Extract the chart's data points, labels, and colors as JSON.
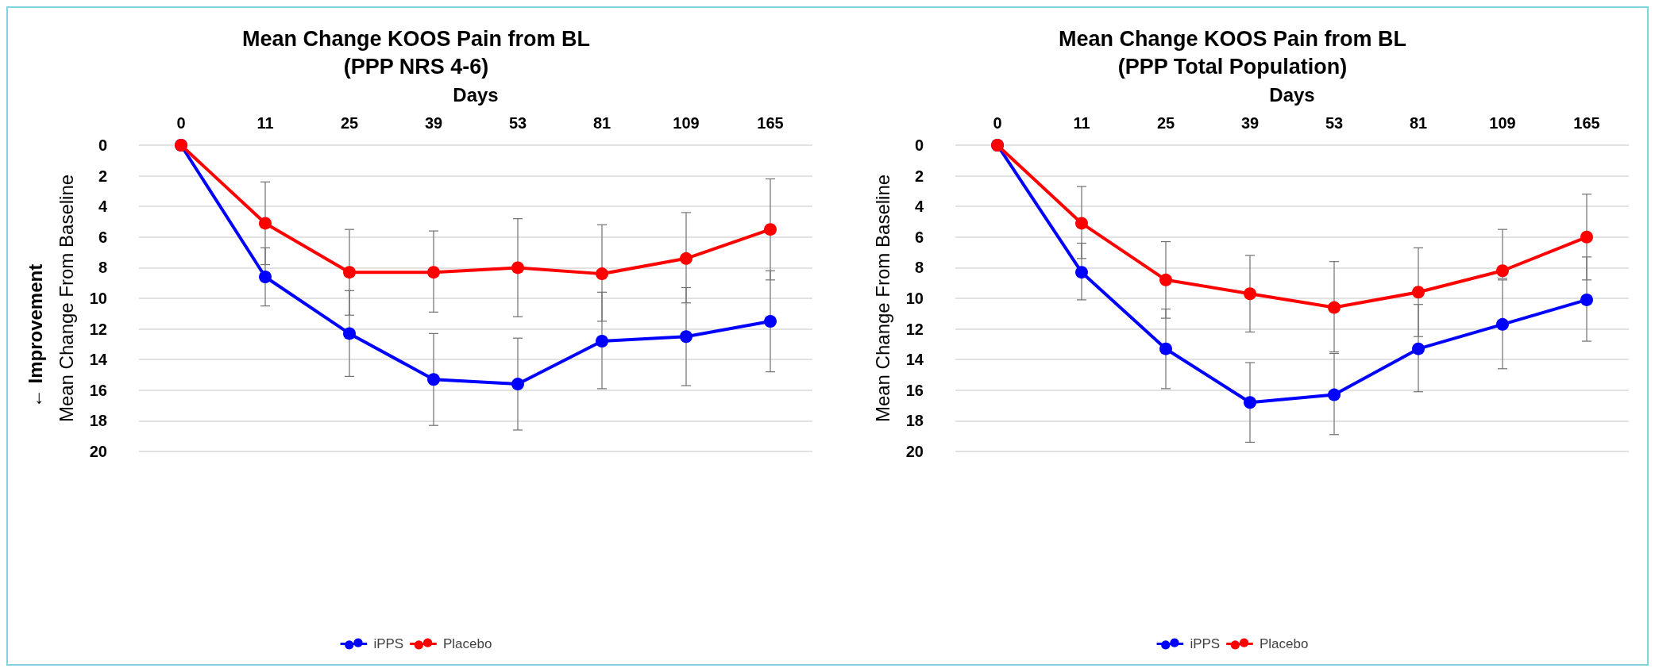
{
  "chart_data": [
    {
      "type": "line",
      "title": "Mean Change KOOS Pain from BL",
      "subtitle": "(PPP NRS 4-6)",
      "xlabel": "Days",
      "ylabel": "Mean Change From Baseline",
      "annotations": [
        "← Improvement"
      ],
      "categories": [
        "0",
        "11",
        "25",
        "39",
        "53",
        "81",
        "109",
        "165"
      ],
      "ylim": [
        20,
        0
      ],
      "yticks": [
        0,
        2,
        4,
        6,
        8,
        10,
        12,
        14,
        16,
        18,
        20
      ],
      "grid": "y",
      "legend": "bottom",
      "marker": "circle",
      "line_style": "solid",
      "series": [
        {
          "name": "iPPS",
          "color": "#0000ff",
          "values": [
            0,
            8.6,
            12.3,
            15.3,
            15.6,
            12.8,
            12.5,
            11.5
          ],
          "errors": [
            null,
            [
              6.7,
              10.5
            ],
            [
              9.5,
              15.1
            ],
            [
              12.3,
              18.3
            ],
            [
              12.6,
              18.6
            ],
            [
              9.6,
              15.9
            ],
            [
              9.3,
              15.7
            ],
            [
              8.2,
              14.8
            ]
          ]
        },
        {
          "name": "Placebo",
          "color": "#ff0000",
          "values": [
            0,
            5.1,
            8.3,
            8.3,
            8.0,
            8.4,
            7.4,
            5.5
          ],
          "errors": [
            null,
            [
              2.4,
              7.8
            ],
            [
              5.5,
              11.1
            ],
            [
              5.6,
              10.9
            ],
            [
              4.8,
              11.2
            ],
            [
              5.2,
              11.5
            ],
            [
              4.4,
              10.3
            ],
            [
              2.2,
              8.8
            ]
          ]
        }
      ]
    },
    {
      "type": "line",
      "title": "Mean Change KOOS Pain from BL",
      "subtitle": "(PPP Total Population)",
      "xlabel": "Days",
      "ylabel": "Mean Change From Baseline",
      "categories": [
        "0",
        "11",
        "25",
        "39",
        "53",
        "81",
        "109",
        "165"
      ],
      "ylim": [
        20,
        0
      ],
      "yticks": [
        0,
        2,
        4,
        6,
        8,
        10,
        12,
        14,
        16,
        18,
        20
      ],
      "grid": "y",
      "legend": "bottom",
      "marker": "circle",
      "line_style": "solid",
      "series": [
        {
          "name": "iPPS",
          "color": "#0000ff",
          "values": [
            0,
            8.3,
            13.3,
            16.8,
            16.3,
            13.3,
            11.7,
            10.1
          ],
          "errors": [
            null,
            [
              6.4,
              10.1
            ],
            [
              10.7,
              15.9
            ],
            [
              14.2,
              19.4
            ],
            [
              13.6,
              18.9
            ],
            [
              10.4,
              16.1
            ],
            [
              8.8,
              14.6
            ],
            [
              7.3,
              12.8
            ]
          ]
        },
        {
          "name": "Placebo",
          "color": "#ff0000",
          "values": [
            0,
            5.1,
            8.8,
            9.7,
            10.6,
            9.6,
            8.2,
            6.0
          ],
          "errors": [
            null,
            [
              2.7,
              7.4
            ],
            [
              6.3,
              11.3
            ],
            [
              7.2,
              12.2
            ],
            [
              7.6,
              13.5
            ],
            [
              6.7,
              12.5
            ],
            [
              5.5,
              8.7
            ],
            [
              3.2,
              8.8
            ]
          ]
        }
      ]
    }
  ]
}
